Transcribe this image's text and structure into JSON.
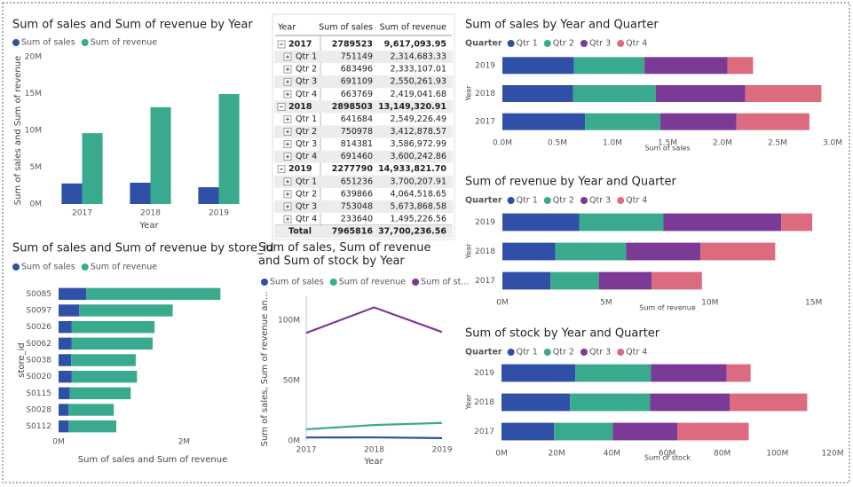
{
  "chart_data": [
    {
      "type": "bar",
      "title": "Sum of sales and Sum of revenue by Year",
      "categories": [
        "2017",
        "2018",
        "2019"
      ],
      "series": [
        {
          "name": "Sum of sales",
          "color": "#3050a8",
          "values": [
            2789523,
            2898503,
            2277790
          ]
        },
        {
          "name": "Sum of revenue",
          "color": "#3aaa8f",
          "values": [
            9617093.95,
            13149320.91,
            14933821.7
          ]
        }
      ],
      "ylim": [
        0,
        20000000
      ],
      "yticks": [
        {
          "value": 0,
          "label": "0M"
        },
        {
          "value": 5000000,
          "label": "5M"
        },
        {
          "value": 10000000,
          "label": "10M"
        },
        {
          "value": 15000000,
          "label": "15M"
        },
        {
          "value": 20000000,
          "label": "20M"
        }
      ],
      "x_label": "Year",
      "y_label": "Sum of sales and Sum of revenue",
      "grid": false
    },
    {
      "type": "hbar",
      "title": "Sum of sales and Sum of revenue by store_id",
      "categories": [
        "S0085",
        "S0097",
        "S0026",
        "S0062",
        "S0038",
        "S0020",
        "S0115",
        "S0028",
        "S0112"
      ],
      "series": [
        {
          "name": "Sum of sales",
          "color": "#3050a8",
          "values": [
            440000,
            330000,
            210000,
            210000,
            200000,
            210000,
            180000,
            160000,
            160000
          ]
        },
        {
          "name": "Sum of revenue",
          "color": "#3aaa8f",
          "values": [
            2140000,
            1490000,
            1320000,
            1290000,
            1030000,
            1040000,
            970000,
            720000,
            760000
          ]
        }
      ],
      "xlim": [
        0,
        3000000
      ],
      "xticks": [
        {
          "value": 0,
          "label": "0M"
        },
        {
          "value": 2000000,
          "label": "2M"
        }
      ],
      "x_label": "Sum of sales and Sum of revenue",
      "y_label": "store_id",
      "grid": false
    },
    {
      "type": "line",
      "title": "Sum of sales, Sum of revenue and Sum of stock by Year",
      "categories": [
        "2017",
        "2018",
        "2019"
      ],
      "series": [
        {
          "name": "Sum of sales",
          "color": "#3050a8",
          "values": [
            2789523,
            2898503,
            2277790
          ]
        },
        {
          "name": "Sum of revenue",
          "color": "#3aaa8f",
          "values": [
            9617093.95,
            13149320.91,
            14933821.7
          ]
        },
        {
          "name": "Sum of st...",
          "color": "#7b3a96",
          "values": [
            89600000,
            110800000,
            90300000
          ]
        }
      ],
      "ylim": [
        0,
        120000000
      ],
      "yticks": [
        {
          "value": 0,
          "label": "0M"
        },
        {
          "value": 50000000,
          "label": "50M"
        },
        {
          "value": 100000000,
          "label": "100M"
        }
      ],
      "x_label": "Year",
      "y_label": "Sum of sales, Sum of revenue an...",
      "grid": false
    },
    {
      "type": "hbar",
      "title": "Sum of sales by Year and Quarter",
      "legend_title": "Quarter",
      "categories": [
        "2019",
        "2018",
        "2017"
      ],
      "series": [
        {
          "name": "Qtr 1",
          "color": "#3050a8",
          "values": [
            651236,
            641684,
            751149
          ]
        },
        {
          "name": "Qtr 2",
          "color": "#3aaa8f",
          "values": [
            639866,
            750978,
            683496
          ]
        },
        {
          "name": "Qtr 3",
          "color": "#7b3a96",
          "values": [
            753048,
            814381,
            691109
          ]
        },
        {
          "name": "Qtr 4",
          "color": "#dd6b7f",
          "values": [
            233640,
            691460,
            663769
          ]
        }
      ],
      "xlim": [
        0,
        3000000
      ],
      "xticks": [
        {
          "value": 0,
          "label": "0.0M"
        },
        {
          "value": 500000,
          "label": "0.5M"
        },
        {
          "value": 1000000,
          "label": "1.0M"
        },
        {
          "value": 1500000,
          "label": "1.5M"
        },
        {
          "value": 2000000,
          "label": "2.0M"
        },
        {
          "value": 2500000,
          "label": "2.5M"
        },
        {
          "value": 3000000,
          "label": "3.0M"
        }
      ],
      "x_label": "Sum of sales",
      "y_label": "Year",
      "grid": false
    },
    {
      "type": "hbar",
      "title": "Sum of revenue by Year and Quarter",
      "legend_title": "Quarter",
      "categories": [
        "2019",
        "2018",
        "2017"
      ],
      "series": [
        {
          "name": "Qtr 1",
          "color": "#3050a8",
          "values": [
            3700207.91,
            2549226.49,
            2314683.33
          ]
        },
        {
          "name": "Qtr 2",
          "color": "#3aaa8f",
          "values": [
            4064518.65,
            3412878.57,
            2333107.01
          ]
        },
        {
          "name": "Qtr 3",
          "color": "#7b3a96",
          "values": [
            5673868.58,
            3586972.99,
            2550261.93
          ]
        },
        {
          "name": "Qtr 4",
          "color": "#dd6b7f",
          "values": [
            1495226.56,
            3600242.86,
            2419041.68
          ]
        }
      ],
      "xlim": [
        0,
        16000000
      ],
      "xticks": [
        {
          "value": 0,
          "label": "0M"
        },
        {
          "value": 5000000,
          "label": "5M"
        },
        {
          "value": 10000000,
          "label": "10M"
        },
        {
          "value": 15000000,
          "label": "15M"
        }
      ],
      "x_label": "Sum of revenue",
      "y_label": "Year",
      "grid": false
    },
    {
      "type": "hbar",
      "title": "Sum of stock by Year and Quarter",
      "legend_title": "Quarter",
      "categories": [
        "2019",
        "2018",
        "2017"
      ],
      "series": [
        {
          "name": "Qtr 1",
          "color": "#3050a8",
          "values": [
            26800000,
            24800000,
            19000000
          ]
        },
        {
          "name": "Qtr 2",
          "color": "#3aaa8f",
          "values": [
            27400000,
            29000000,
            21300000
          ]
        },
        {
          "name": "Qtr 3",
          "color": "#7b3a96",
          "values": [
            27400000,
            29000000,
            23500000
          ]
        },
        {
          "name": "Qtr 4",
          "color": "#dd6b7f",
          "values": [
            8700000,
            28000000,
            25800000
          ]
        }
      ],
      "xlim": [
        0,
        120000000
      ],
      "xticks": [
        {
          "value": 0,
          "label": "0M"
        },
        {
          "value": 20000000,
          "label": "20M"
        },
        {
          "value": 40000000,
          "label": "40M"
        },
        {
          "value": 60000000,
          "label": "60M"
        },
        {
          "value": 80000000,
          "label": "80M"
        },
        {
          "value": 100000000,
          "label": "100M"
        },
        {
          "value": 120000000,
          "label": "120M"
        }
      ],
      "x_label": "Sum of stock",
      "y_label": "Year",
      "grid": false
    }
  ],
  "table": {
    "header": [
      "Year",
      "Sum of sales",
      "Sum of revenue"
    ],
    "years": [
      {
        "row": [
          "2017",
          "2789523",
          "9,617,093.95"
        ],
        "quarters": [
          [
            "Qtr 1",
            "751149",
            "2,314,683.33"
          ],
          [
            "Qtr 2",
            "683496",
            "2,333,107.01"
          ],
          [
            "Qtr 3",
            "691109",
            "2,550,261.93"
          ],
          [
            "Qtr 4",
            "663769",
            "2,419,041.68"
          ]
        ]
      },
      {
        "row": [
          "2018",
          "2898503",
          "13,149,320.91"
        ],
        "quarters": [
          [
            "Qtr 1",
            "641684",
            "2,549,226.49"
          ],
          [
            "Qtr 2",
            "750978",
            "3,412,878.57"
          ],
          [
            "Qtr 3",
            "814381",
            "3,586,972.99"
          ],
          [
            "Qtr 4",
            "691460",
            "3,600,242.86"
          ]
        ]
      },
      {
        "row": [
          "2019",
          "2277790",
          "14,933,821.70"
        ],
        "quarters": [
          [
            "Qtr 1",
            "651236",
            "3,700,207.91"
          ],
          [
            "Qtr 2",
            "639866",
            "4,064,518.65"
          ],
          [
            "Qtr 3",
            "753048",
            "5,673,868.58"
          ],
          [
            "Qtr 4",
            "233640",
            "1,495,226.56"
          ]
        ]
      }
    ],
    "total": [
      "Total",
      "7965816",
      "37,700,236.56"
    ]
  }
}
